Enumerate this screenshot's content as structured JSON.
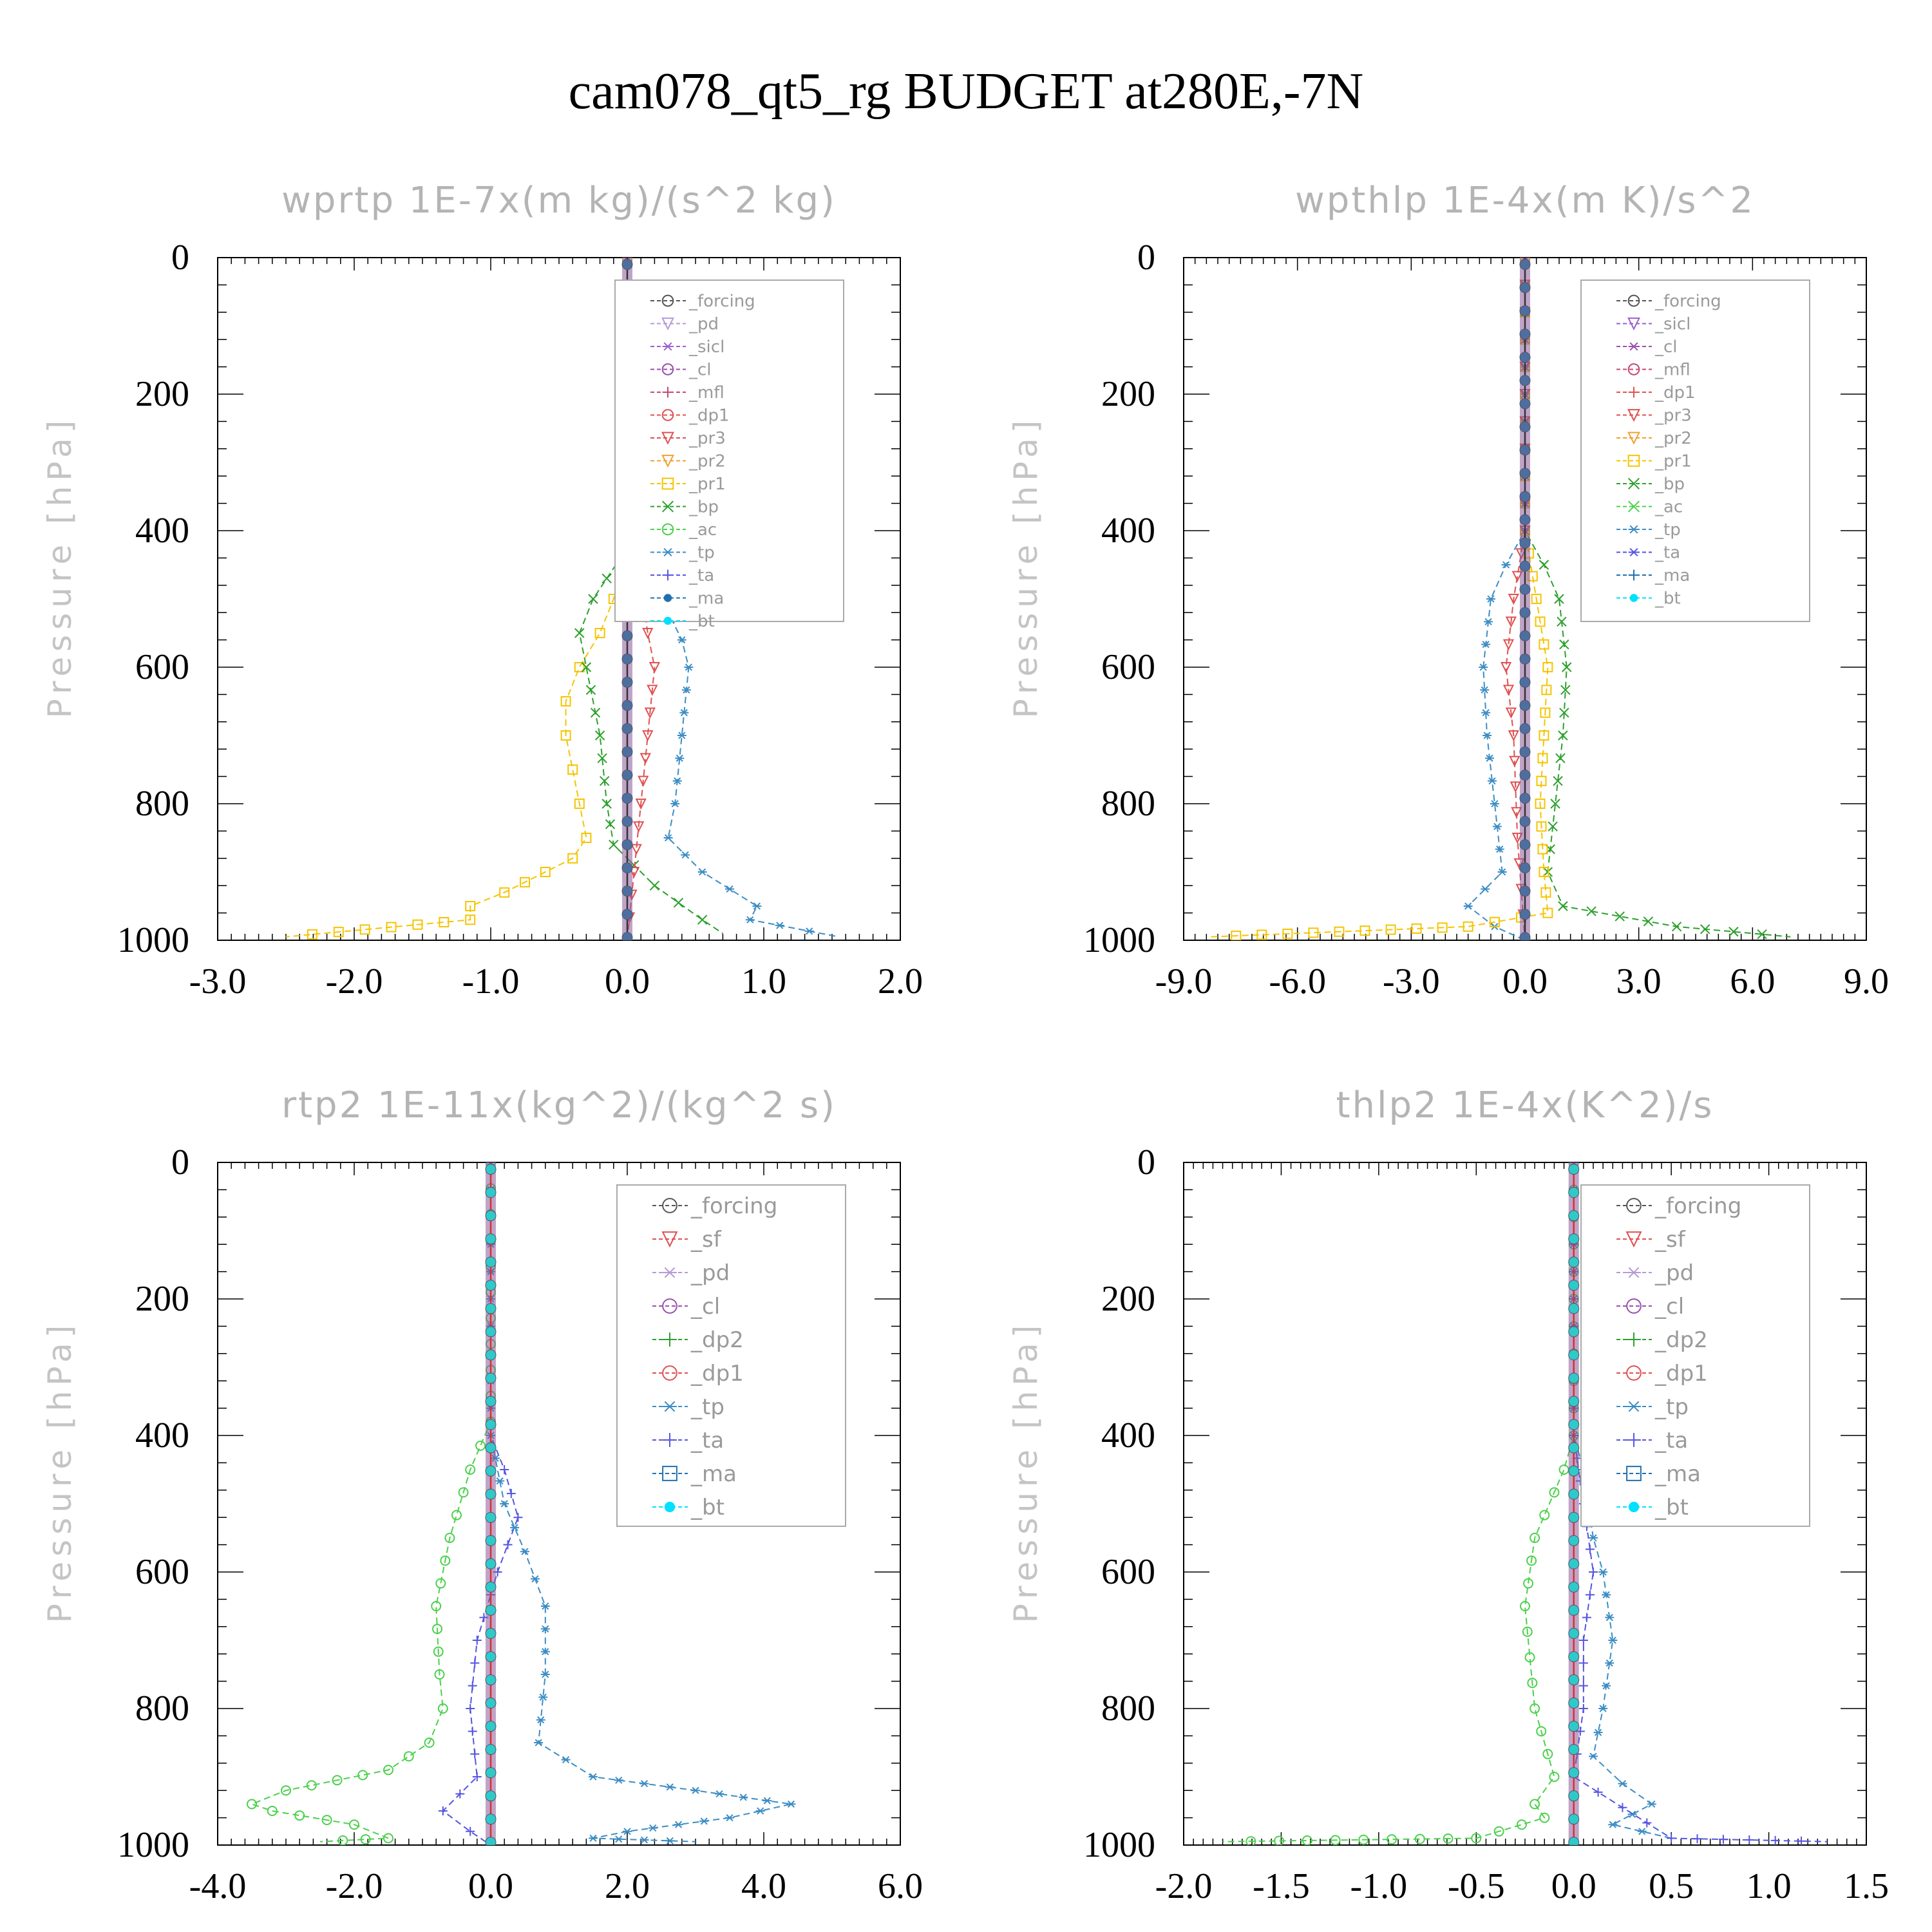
{
  "title": "cam078_qt5_rg  BUDGET at280E,-7N",
  "chart_data": [
    {
      "type": "line",
      "title": "wprtp  1E-7x(m kg)/(s^2 kg)",
      "ylabel": "Pressure [hPa]",
      "xlim": [
        -3.0,
        2.0
      ],
      "ylim": [
        1000,
        0
      ],
      "x_ticks": [
        "-3.0",
        "-2.0",
        "-1.0",
        "0.0",
        "1.0",
        "2.0"
      ],
      "y_ticks": [
        "0",
        "200",
        "400",
        "600",
        "800",
        "1000"
      ],
      "legend_entries": [
        "_forcing",
        "_pd",
        "_sicl",
        "_cl",
        "_mfl",
        "_dp1",
        "_pr3",
        "_pr2",
        "_pr1",
        "_bp",
        "_ac",
        "_tp",
        "_ta",
        "_ma",
        "_bt"
      ],
      "series": [
        {
          "name": "_pr1",
          "color": "#f5c400",
          "marker": "square",
          "points": [
            [
              0,
              0
            ],
            [
              0,
              400
            ],
            [
              -0.05,
              450
            ],
            [
              -0.1,
              500
            ],
            [
              -0.2,
              550
            ],
            [
              -0.35,
              600
            ],
            [
              -0.45,
              650
            ],
            [
              -0.45,
              700
            ],
            [
              -0.4,
              750
            ],
            [
              -0.35,
              800
            ],
            [
              -0.3,
              850
            ],
            [
              -0.4,
              880
            ],
            [
              -0.6,
              900
            ],
            [
              -0.9,
              930
            ],
            [
              -1.15,
              950
            ],
            [
              -1.15,
              970
            ],
            [
              -2.5,
              995
            ]
          ]
        },
        {
          "name": "_bp",
          "color": "#2ca02c",
          "marker": "x",
          "points": [
            [
              0,
              0
            ],
            [
              0,
              400
            ],
            [
              -0.05,
              440
            ],
            [
              -0.25,
              500
            ],
            [
              -0.35,
              550
            ],
            [
              -0.3,
              600
            ],
            [
              -0.2,
              700
            ],
            [
              -0.15,
              800
            ],
            [
              -0.1,
              860
            ],
            [
              0.2,
              920
            ],
            [
              0.55,
              970
            ],
            [
              0.7,
              990
            ]
          ]
        },
        {
          "name": "_tp",
          "color": "#3c8dc4",
          "marker": "asterisk",
          "points": [
            [
              0,
              0
            ],
            [
              0,
              400
            ],
            [
              0.1,
              450
            ],
            [
              0.25,
              500
            ],
            [
              0.4,
              560
            ],
            [
              0.45,
              600
            ],
            [
              0.4,
              700
            ],
            [
              0.35,
              800
            ],
            [
              0.3,
              850
            ],
            [
              0.55,
              900
            ],
            [
              0.95,
              950
            ],
            [
              0.9,
              970
            ],
            [
              1.55,
              995
            ]
          ]
        },
        {
          "name": "_pr3",
          "color": "#e05050",
          "marker": "triangle",
          "points": [
            [
              0,
              0
            ],
            [
              0,
              400
            ],
            [
              0.1,
              480
            ],
            [
              0.15,
              550
            ],
            [
              0.2,
              600
            ],
            [
              0.15,
              700
            ],
            [
              0.1,
              800
            ],
            [
              0.05,
              900
            ],
            [
              0,
              1000
            ]
          ]
        },
        {
          "name": "_bt",
          "color": "#4d6fa0",
          "marker": "dot",
          "points": [
            [
              0,
              0
            ],
            [
              0,
              1000
            ]
          ]
        }
      ]
    },
    {
      "type": "line",
      "title": "wpthlp  1E-4x(m K)/s^2",
      "ylabel": "Pressure [hPa]",
      "xlim": [
        -9.0,
        9.0
      ],
      "ylim": [
        1000,
        0
      ],
      "x_ticks": [
        "-9.0",
        "-6.0",
        "-3.0",
        "0.0",
        "3.0",
        "6.0",
        "9.0"
      ],
      "y_ticks": [
        "0",
        "200",
        "400",
        "600",
        "800",
        "1000"
      ],
      "legend_entries": [
        "_forcing",
        "_sicl",
        "_cl",
        "_mfl",
        "_dp1",
        "_pr3",
        "_pr2",
        "_pr1",
        "_bp",
        "_ac",
        "_tp",
        "_ta",
        "_ma",
        "_bt"
      ],
      "series": [
        {
          "name": "_bp",
          "color": "#2ca02c",
          "marker": "x",
          "points": [
            [
              0,
              0
            ],
            [
              0,
              400
            ],
            [
              0.5,
              450
            ],
            [
              0.9,
              500
            ],
            [
              1.1,
              600
            ],
            [
              1.0,
              700
            ],
            [
              0.8,
              800
            ],
            [
              0.6,
              900
            ],
            [
              1.0,
              950
            ],
            [
              4.0,
              980
            ],
            [
              7.0,
              995
            ]
          ]
        },
        {
          "name": "_tp",
          "color": "#3c8dc4",
          "marker": "asterisk",
          "points": [
            [
              0,
              0
            ],
            [
              0,
              400
            ],
            [
              -0.5,
              450
            ],
            [
              -0.9,
              500
            ],
            [
              -1.1,
              600
            ],
            [
              -1.0,
              700
            ],
            [
              -0.8,
              800
            ],
            [
              -0.6,
              900
            ],
            [
              -1.5,
              950
            ],
            [
              -0.8,
              980
            ],
            [
              0,
              1000
            ]
          ]
        },
        {
          "name": "_pr1",
          "color": "#f5c400",
          "marker": "square",
          "points": [
            [
              0,
              0
            ],
            [
              0,
              400
            ],
            [
              0.3,
              500
            ],
            [
              0.6,
              600
            ],
            [
              0.5,
              700
            ],
            [
              0.4,
              800
            ],
            [
              0.5,
              900
            ],
            [
              0.6,
              960
            ],
            [
              -1.5,
              980
            ],
            [
              -8.3,
              995
            ]
          ]
        },
        {
          "name": "_pr3",
          "color": "#e05050",
          "marker": "triangle",
          "points": [
            [
              0,
              0
            ],
            [
              0,
              400
            ],
            [
              -0.3,
              500
            ],
            [
              -0.5,
              600
            ],
            [
              -0.3,
              700
            ],
            [
              -0.2,
              850
            ],
            [
              0,
              1000
            ]
          ]
        },
        {
          "name": "_bt",
          "color": "#4d6fa0",
          "marker": "dot",
          "points": [
            [
              0,
              0
            ],
            [
              0,
              1000
            ]
          ]
        }
      ]
    },
    {
      "type": "line",
      "title": "rtp2  1E-11x(kg^2)/(kg^2 s)",
      "ylabel": "Pressure [hPa]",
      "xlim": [
        -4.0,
        6.0
      ],
      "ylim": [
        1000,
        0
      ],
      "x_ticks": [
        "-4.0",
        "-2.0",
        "0.0",
        "2.0",
        "4.0",
        "6.0"
      ],
      "y_ticks": [
        "0",
        "200",
        "400",
        "600",
        "800",
        "1000"
      ],
      "legend_entries": [
        "_forcing",
        "_sf",
        "_pd",
        "_cl",
        "_dp2",
        "_dp1",
        "_tp",
        "_ta",
        "_ma",
        "_bt"
      ],
      "series": [
        {
          "name": "_dp1",
          "color": "#4cd04c",
          "marker": "circle",
          "points": [
            [
              0,
              0
            ],
            [
              0,
              380
            ],
            [
              -0.3,
              450
            ],
            [
              -0.6,
              550
            ],
            [
              -0.8,
              650
            ],
            [
              -0.75,
              750
            ],
            [
              -0.7,
              800
            ],
            [
              -0.9,
              850
            ],
            [
              -1.5,
              890
            ],
            [
              -3.0,
              920
            ],
            [
              -3.5,
              940
            ],
            [
              -3.2,
              950
            ],
            [
              -2.0,
              970
            ],
            [
              -1.5,
              990
            ],
            [
              -2.5,
              995
            ]
          ]
        },
        {
          "name": "_ta",
          "color": "#5555e0",
          "marker": "plus",
          "points": [
            [
              0,
              0
            ],
            [
              0,
              400
            ],
            [
              0.2,
              450
            ],
            [
              0.4,
              520
            ],
            [
              0.1,
              600
            ],
            [
              -0.2,
              700
            ],
            [
              -0.3,
              800
            ],
            [
              -0.2,
              900
            ],
            [
              -0.7,
              950
            ],
            [
              -0.3,
              980
            ],
            [
              0,
              1000
            ]
          ]
        },
        {
          "name": "_tp",
          "color": "#3c8dc4",
          "marker": "asterisk",
          "points": [
            [
              0,
              0
            ],
            [
              0,
              400
            ],
            [
              0.2,
              500
            ],
            [
              0.5,
              570
            ],
            [
              0.8,
              650
            ],
            [
              0.8,
              750
            ],
            [
              0.7,
              850
            ],
            [
              1.5,
              900
            ],
            [
              3.0,
              920
            ],
            [
              4.4,
              940
            ],
            [
              3.5,
              960
            ],
            [
              2.0,
              980
            ],
            [
              1.5,
              990
            ],
            [
              3.0,
              995
            ]
          ]
        },
        {
          "name": "_bt",
          "color": "#2fc9c9",
          "marker": "dot",
          "points": [
            [
              0,
              0
            ],
            [
              0,
              1000
            ]
          ]
        }
      ]
    },
    {
      "type": "line",
      "title": "thlp2  1E-4x(K^2)/s",
      "ylabel": "Pressure [hPa]",
      "xlim": [
        -2.0,
        1.5
      ],
      "ylim": [
        1000,
        0
      ],
      "x_ticks": [
        "-2.0",
        "-1.5",
        "-1.0",
        "-0.5",
        "0.0",
        "0.5",
        "1.0",
        "1.5"
      ],
      "y_ticks": [
        "0",
        "200",
        "400",
        "600",
        "800",
        "1000"
      ],
      "legend_entries": [
        "_forcing",
        "_sf",
        "_pd",
        "_cl",
        "_dp2",
        "_dp1",
        "_tp",
        "_ta",
        "_ma",
        "_bt"
      ],
      "series": [
        {
          "name": "_dp1",
          "color": "#4cd04c",
          "marker": "circle",
          "points": [
            [
              0,
              0
            ],
            [
              0,
              400
            ],
            [
              -0.05,
              450
            ],
            [
              -0.2,
              550
            ],
            [
              -0.25,
              650
            ],
            [
              -0.2,
              800
            ],
            [
              -0.1,
              900
            ],
            [
              -0.2,
              940
            ],
            [
              -0.15,
              960
            ],
            [
              -0.5,
              990
            ],
            [
              -1.8,
              995
            ]
          ]
        },
        {
          "name": "_tp",
          "color": "#3c8dc4",
          "marker": "asterisk",
          "points": [
            [
              0,
              0
            ],
            [
              0,
              400
            ],
            [
              0.05,
              450
            ],
            [
              0.1,
              550
            ],
            [
              0.15,
              600
            ],
            [
              0.2,
              700
            ],
            [
              0.15,
              800
            ],
            [
              0.1,
              870
            ],
            [
              0.25,
              910
            ],
            [
              0.4,
              940
            ],
            [
              0.2,
              970
            ],
            [
              0.5,
              990
            ]
          ]
        },
        {
          "name": "_ta",
          "color": "#5555e0",
          "marker": "plus",
          "points": [
            [
              0,
              0
            ],
            [
              0,
              400
            ],
            [
              0.05,
              500
            ],
            [
              0.1,
              600
            ],
            [
              0.05,
              700
            ],
            [
              0.05,
              800
            ],
            [
              0,
              900
            ],
            [
              0.5,
              990
            ],
            [
              1.3,
              995
            ]
          ]
        },
        {
          "name": "_bt",
          "color": "#2fc9c9",
          "marker": "dot",
          "points": [
            [
              0,
              0
            ],
            [
              0,
              1000
            ]
          ]
        }
      ]
    }
  ]
}
